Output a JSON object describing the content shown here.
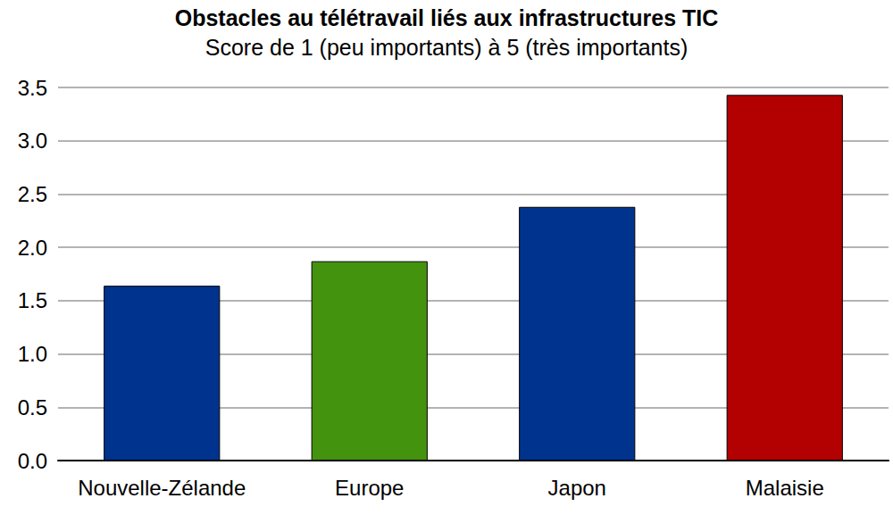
{
  "chart_data": {
    "type": "bar",
    "title": "Obstacles au télétravail liés aux infrastructures TIC",
    "subtitle": "Score de 1 (peu importants) à 5 (très importants)",
    "categories": [
      "Nouvelle-Zélande",
      "Europe",
      "Japon",
      "Malaisie"
    ],
    "values": [
      1.64,
      1.87,
      2.38,
      3.43
    ],
    "colors": [
      "#00338d",
      "#43930e",
      "#00338d",
      "#b30000"
    ],
    "ylim": [
      0,
      3.5
    ],
    "yticks": [
      {
        "value": 0,
        "label": "0.0"
      },
      0.5,
      {
        "value": 1,
        "label": "1.0"
      },
      1.5,
      {
        "value": 2,
        "label": "2.0"
      },
      2.5,
      {
        "value": 3,
        "label": "3.0"
      },
      3.5
    ],
    "grid": true
  }
}
